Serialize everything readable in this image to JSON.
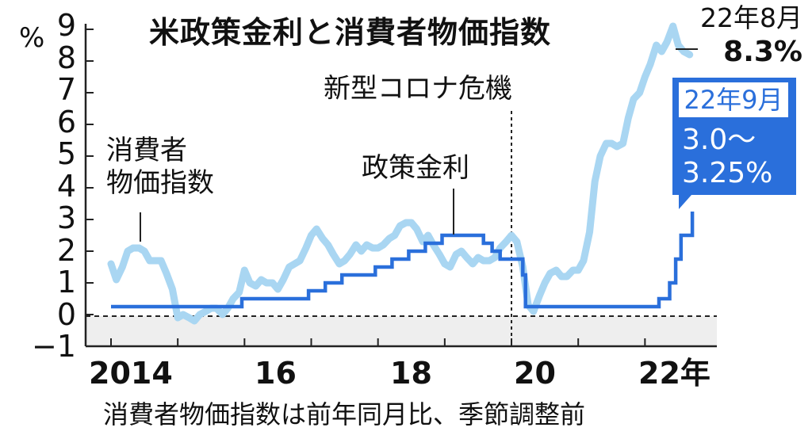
{
  "chart_data": {
    "type": "line",
    "title": "米政策金利と消費者物価指数",
    "ylabel": "%",
    "ylim": [
      -1,
      9
    ],
    "yticks": [
      "9",
      "8",
      "7",
      "6",
      "5",
      "4",
      "3",
      "2",
      "1",
      "0",
      "−1"
    ],
    "xlim": [
      2014,
      2022.85
    ],
    "xticks": [
      {
        "value": 2014,
        "label": "2014"
      },
      {
        "value": 2016,
        "label": "16"
      },
      {
        "value": 2018,
        "label": "18"
      },
      {
        "value": 2020,
        "label": "20"
      },
      {
        "value": 2022,
        "label": "22年"
      }
    ],
    "grid": false,
    "zero_line": true,
    "negative_region_shaded": true,
    "series": [
      {
        "name": "消費者物価指数",
        "color": "#a9d6f2",
        "x": [
          2014.0,
          2014.08,
          2014.17,
          2014.25,
          2014.33,
          2014.42,
          2014.5,
          2014.58,
          2014.67,
          2014.75,
          2014.83,
          2014.92,
          2015.0,
          2015.08,
          2015.17,
          2015.25,
          2015.33,
          2015.42,
          2015.5,
          2015.58,
          2015.67,
          2015.75,
          2015.83,
          2015.92,
          2016.0,
          2016.08,
          2016.17,
          2016.25,
          2016.33,
          2016.42,
          2016.5,
          2016.58,
          2016.67,
          2016.75,
          2016.83,
          2016.92,
          2017.0,
          2017.08,
          2017.17,
          2017.25,
          2017.33,
          2017.42,
          2017.5,
          2017.58,
          2017.67,
          2017.75,
          2017.83,
          2017.92,
          2018.0,
          2018.08,
          2018.17,
          2018.25,
          2018.33,
          2018.42,
          2018.5,
          2018.58,
          2018.67,
          2018.75,
          2018.83,
          2018.92,
          2019.0,
          2019.08,
          2019.17,
          2019.25,
          2019.33,
          2019.42,
          2019.5,
          2019.58,
          2019.67,
          2019.75,
          2019.83,
          2019.92,
          2020.0,
          2020.08,
          2020.17,
          2020.25,
          2020.33,
          2020.42,
          2020.5,
          2020.58,
          2020.67,
          2020.75,
          2020.83,
          2020.92,
          2021.0,
          2021.08,
          2021.17,
          2021.25,
          2021.33,
          2021.42,
          2021.5,
          2021.58,
          2021.67,
          2021.75,
          2021.83,
          2021.92,
          2022.0,
          2022.08,
          2022.17,
          2022.25,
          2022.33,
          2022.42,
          2022.5,
          2022.58,
          2022.67
        ],
        "values": [
          1.6,
          1.1,
          1.5,
          2.0,
          2.1,
          2.1,
          2.0,
          1.7,
          1.7,
          1.7,
          1.3,
          0.8,
          -0.1,
          0.0,
          -0.1,
          -0.2,
          0.0,
          0.1,
          0.2,
          0.2,
          0.0,
          0.2,
          0.5,
          0.7,
          1.4,
          1.0,
          0.9,
          1.1,
          1.0,
          1.0,
          0.8,
          1.1,
          1.5,
          1.6,
          1.7,
          2.1,
          2.5,
          2.7,
          2.4,
          2.2,
          1.9,
          1.6,
          1.7,
          1.9,
          2.2,
          2.0,
          2.2,
          2.1,
          2.1,
          2.2,
          2.4,
          2.5,
          2.8,
          2.9,
          2.9,
          2.7,
          2.3,
          2.5,
          2.2,
          1.9,
          1.6,
          1.5,
          1.9,
          2.0,
          1.8,
          1.6,
          1.8,
          1.7,
          1.7,
          1.8,
          2.1,
          2.3,
          2.5,
          2.3,
          1.5,
          0.3,
          0.1,
          0.6,
          1.0,
          1.3,
          1.4,
          1.2,
          1.2,
          1.4,
          1.4,
          1.7,
          2.6,
          4.2,
          5.0,
          5.4,
          5.4,
          5.3,
          5.4,
          6.2,
          6.8,
          7.0,
          7.5,
          7.9,
          8.5,
          8.3,
          8.6,
          9.1,
          8.5,
          8.3,
          8.2
        ]
      },
      {
        "name": "政策金利",
        "color": "#2a6fdb",
        "step": true,
        "x": [
          2014.0,
          2015.96,
          2016.96,
          2017.21,
          2017.46,
          2017.96,
          2018.21,
          2018.46,
          2018.71,
          2018.96,
          2019.58,
          2019.71,
          2019.83,
          2020.17,
          2020.21,
          2022.21,
          2022.37,
          2022.46,
          2022.54,
          2022.71
        ],
        "values": [
          0.25,
          0.5,
          0.75,
          1.0,
          1.25,
          1.5,
          1.75,
          2.0,
          2.25,
          2.5,
          2.25,
          2.0,
          1.75,
          1.25,
          0.25,
          0.5,
          1.0,
          1.75,
          2.5,
          3.25
        ]
      }
    ],
    "vline": {
      "x": 2020.0,
      "label": "新型コロナ危機"
    },
    "annotations": [
      {
        "series": "消費者物価指数",
        "text": "消費者\n物価指数"
      },
      {
        "series": "政策金利",
        "text": "政策金利"
      }
    ],
    "callouts": {
      "cpi_peak": {
        "date": "22年8月",
        "value": "8.3%"
      },
      "rate_latest": {
        "date": "22年9月",
        "line1": "3.0〜",
        "line2": "3.25%"
      }
    },
    "note": "消費者物価指数は前年同月比、季節調整前"
  }
}
